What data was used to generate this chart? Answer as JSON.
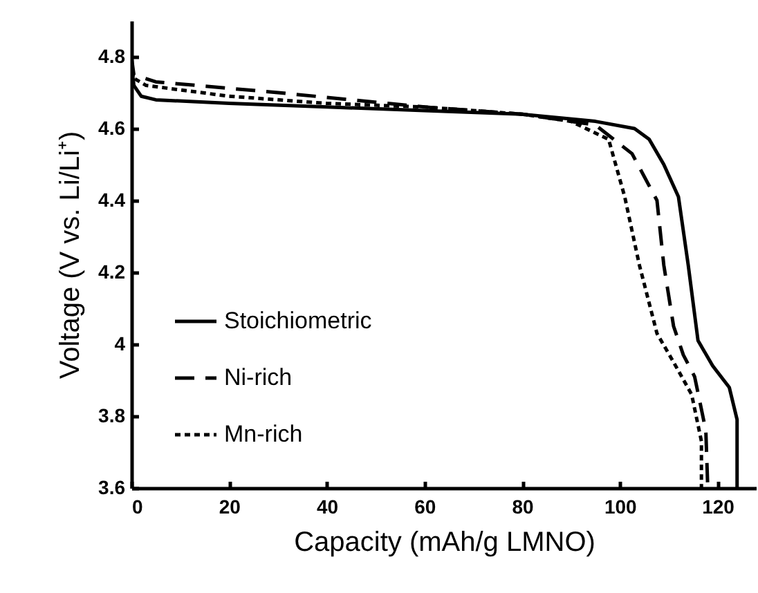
{
  "chart_data": {
    "type": "line",
    "xlabel": "Capacity (mAh/g LMNO)",
    "ylabel": "Voltage (V vs. Li/Li⁺)",
    "xlim": [
      0,
      128
    ],
    "xticks": [
      0,
      20,
      40,
      60,
      80,
      100,
      120
    ],
    "ylim": [
      3.6,
      4.9
    ],
    "yticks": [
      3.6,
      3.8,
      4,
      4.2,
      4.4,
      4.6,
      4.8
    ],
    "grid": false,
    "legend": "bottom left",
    "series": [
      {
        "name": "Stoichiometric",
        "color": "#000000",
        "line_style": "solid",
        "x": [
          0,
          0.5,
          2,
          5,
          20,
          40,
          60,
          80,
          95,
          103,
          106,
          109,
          112,
          114,
          116,
          119,
          122.4,
          124,
          124
        ],
        "values": [
          4.78,
          4.72,
          4.69,
          4.68,
          4.67,
          4.66,
          4.65,
          4.64,
          4.62,
          4.6,
          4.57,
          4.5,
          4.41,
          4.22,
          4.01,
          3.94,
          3.88,
          3.79,
          3.6
        ]
      },
      {
        "name": "Ni-rich",
        "color": "#000000",
        "line_style": "dashed",
        "x": [
          0,
          0.5,
          5,
          30,
          60,
          80,
          95,
          102.5,
          107.6,
          109,
          111,
          113,
          115.3,
          117.6,
          118
        ],
        "values": [
          4.8,
          4.75,
          4.73,
          4.7,
          4.66,
          4.64,
          4.61,
          4.53,
          4.4,
          4.22,
          4.05,
          3.97,
          3.91,
          3.76,
          3.6
        ]
      },
      {
        "name": "Mn-rich",
        "color": "#000000",
        "line_style": "dotted",
        "x": [
          0,
          0.5,
          3,
          20,
          40,
          60,
          80,
          90,
          97.7,
          101,
          104,
          107.6,
          111,
          114.7,
          116.7,
          116.7
        ],
        "values": [
          4.79,
          4.74,
          4.72,
          4.69,
          4.67,
          4.66,
          4.64,
          4.62,
          4.57,
          4.41,
          4.22,
          4.03,
          3.95,
          3.86,
          3.73,
          3.6
        ]
      }
    ]
  }
}
